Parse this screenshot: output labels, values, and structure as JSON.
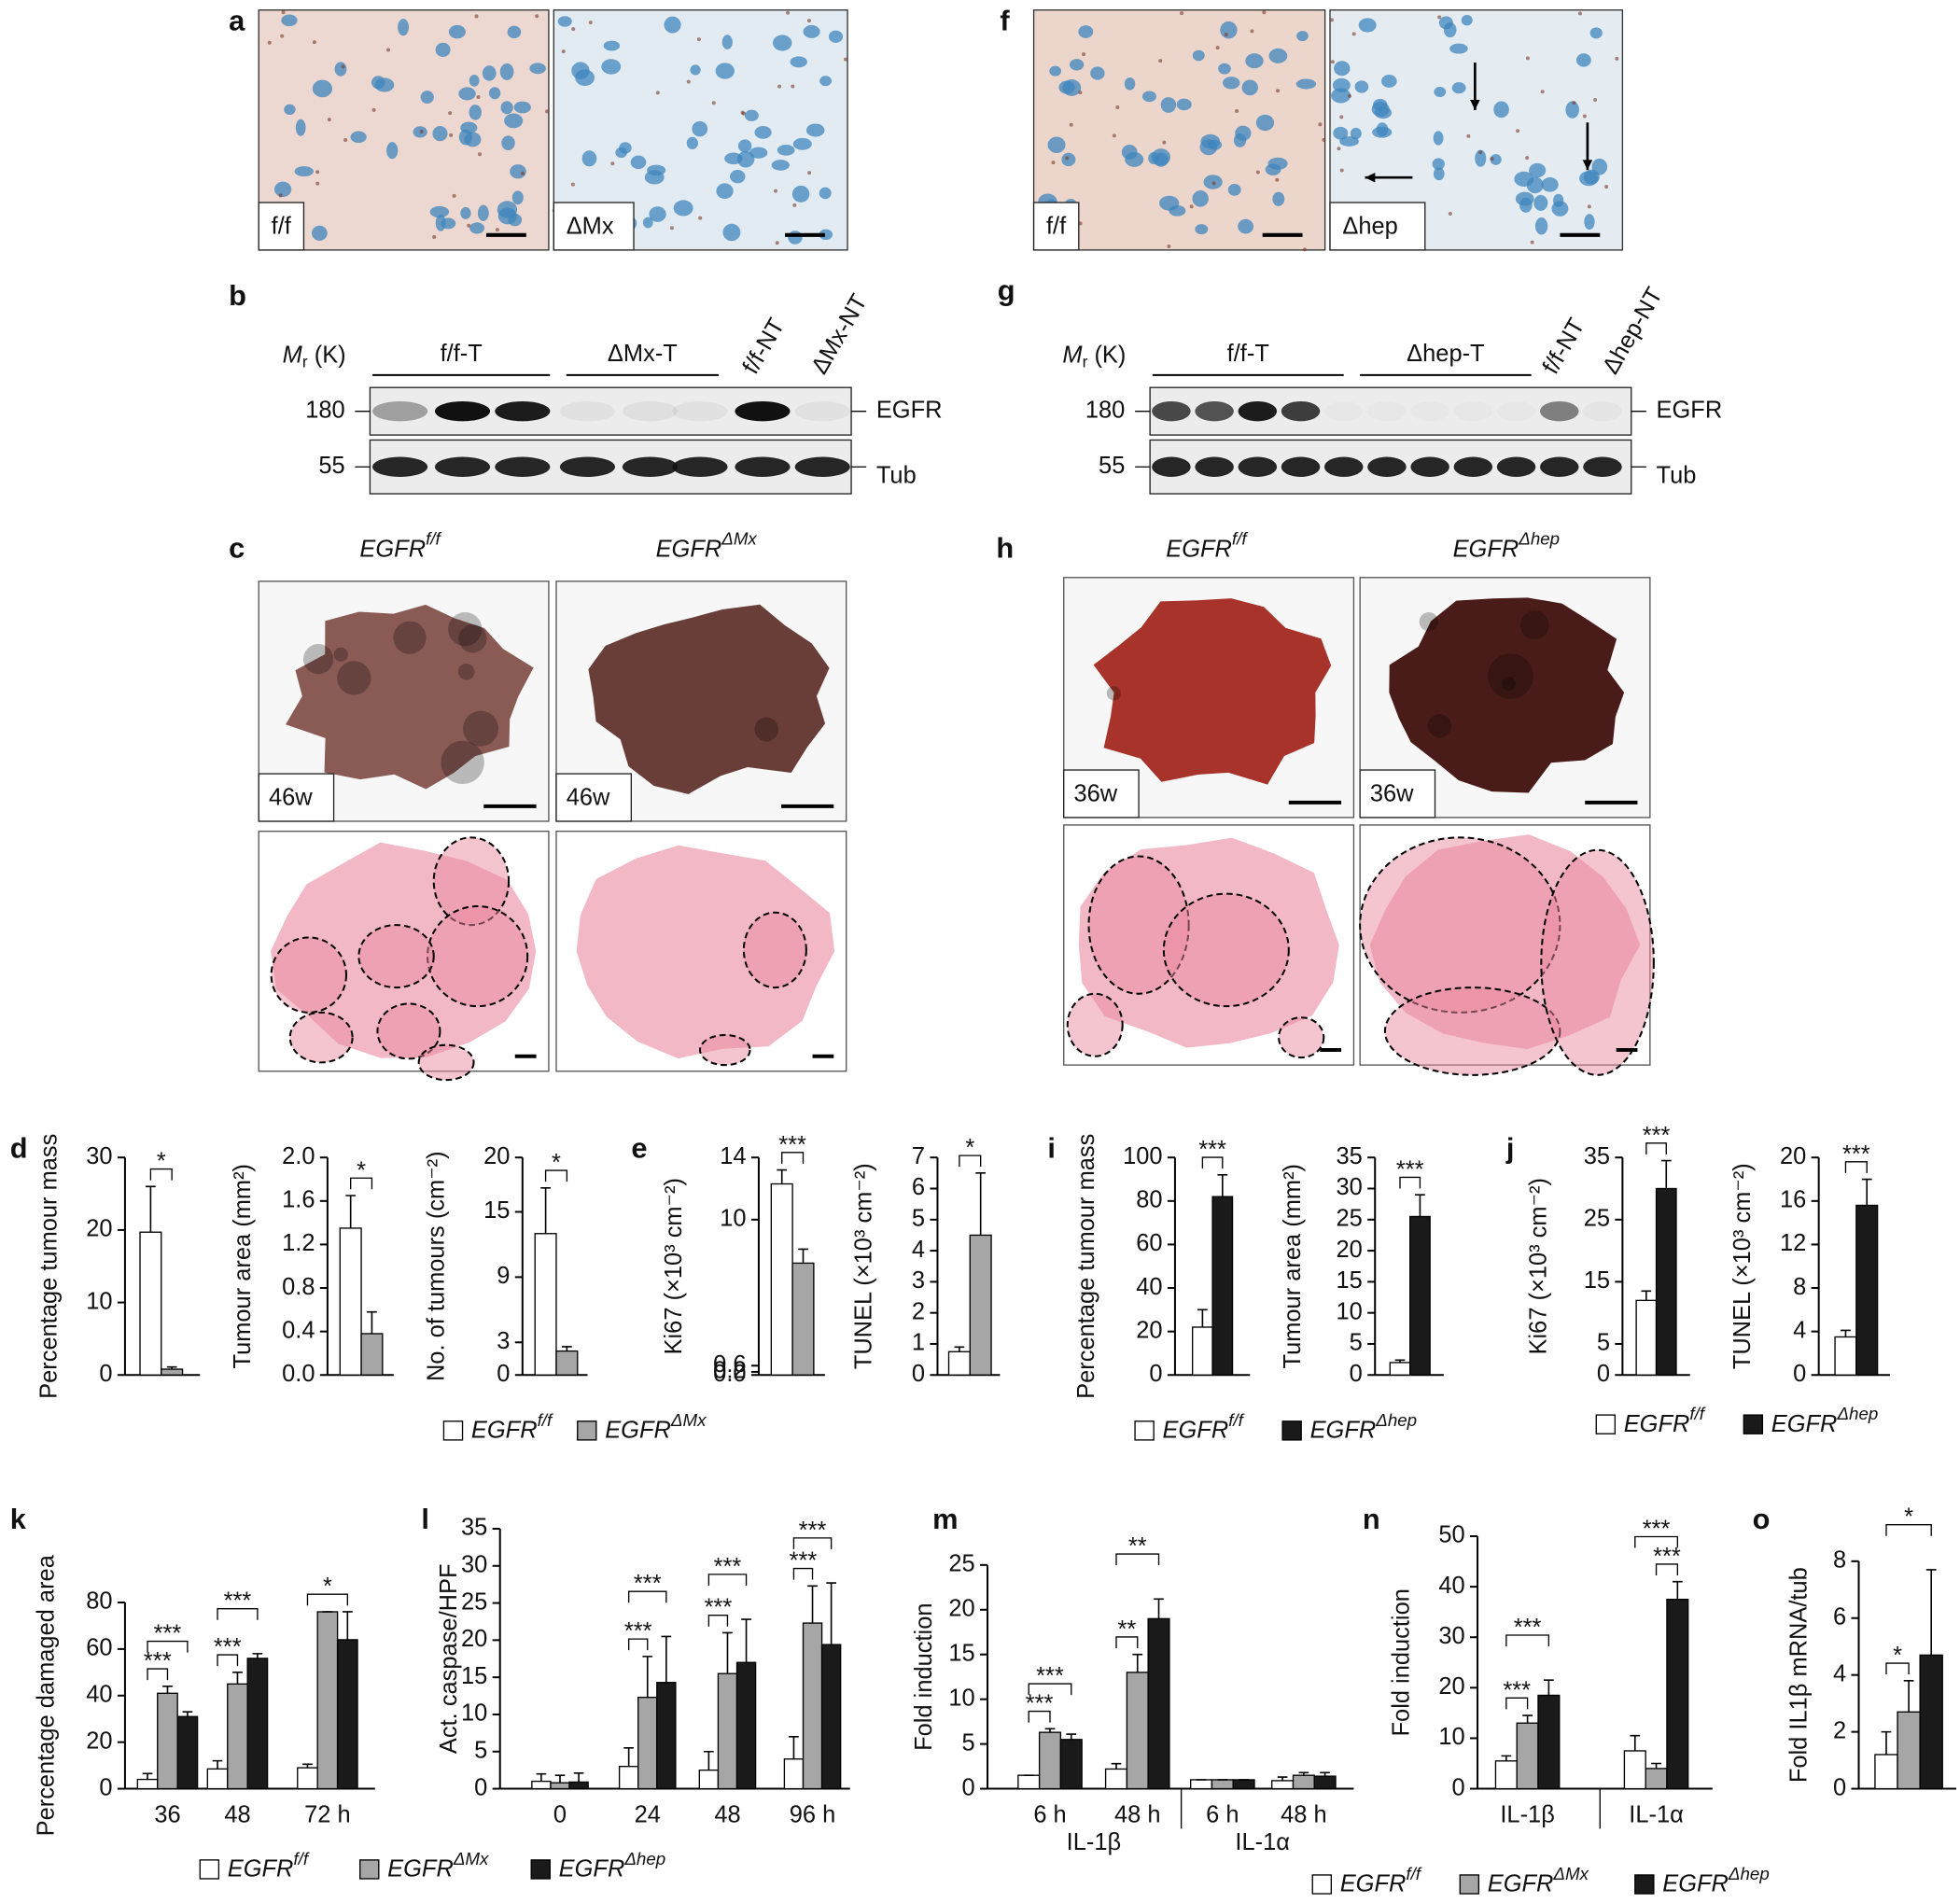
{
  "panels": {
    "letters": [
      "a",
      "b",
      "c",
      "d",
      "e",
      "f",
      "g",
      "h",
      "i",
      "j",
      "k",
      "l",
      "m",
      "n",
      "o"
    ],
    "a": {
      "labels": [
        "f/f",
        "ΔMx"
      ]
    },
    "f": {
      "labels": [
        "f/f",
        "Δhep"
      ]
    },
    "b": {
      "mr": "Mr (K)",
      "lanes": [
        "f/f-T",
        "ΔMx-T",
        "f/f-NT",
        "ΔMx-NT"
      ],
      "markers": [
        180,
        55
      ],
      "proteins": [
        "EGFR",
        "Tub"
      ]
    },
    "g": {
      "mr": "Mr (K)",
      "lanes": [
        "f/f-T",
        "Δhep-T",
        "f/f-NT",
        "Δhep-NT"
      ],
      "markers": [
        180,
        55
      ],
      "proteins": [
        "EGFR",
        "Tub"
      ]
    },
    "c": {
      "headings": [
        "EGFRf/f",
        "EGFRΔMx"
      ],
      "ages": [
        "46w",
        "46w"
      ]
    },
    "h": {
      "headings": [
        "EGFRf/f",
        "EGFRΔhep"
      ],
      "ages": [
        "36w",
        "36w"
      ]
    }
  },
  "chart_data": [
    {
      "type": "bar",
      "y_label": "Percentage tumour mass",
      "categories": [
        null
      ],
      "series": [
        {
          "color": "#ffffff",
          "values": [
            19.7
          ],
          "errors": [
            6.3
          ]
        },
        {
          "color": "#a6a6a6",
          "values": [
            0.8
          ],
          "errors": [
            0.3
          ]
        }
      ],
      "ylim": [
        0,
        30
      ],
      "yticks": [
        0,
        10,
        20,
        30
      ],
      "annotations": [
        "*"
      ]
    },
    {
      "type": "bar",
      "y_label": "Tumour area (mm²)",
      "categories": [
        null
      ],
      "series": [
        {
          "color": "#ffffff",
          "values": [
            1.35
          ],
          "errors": [
            0.3
          ]
        },
        {
          "color": "#a6a6a6",
          "values": [
            0.38
          ],
          "errors": [
            0.2
          ]
        }
      ],
      "ylim": [
        0,
        2
      ],
      "yticks": [
        {
          "value": 0,
          "label": "0.0"
        },
        0.4,
        0.8,
        1.2,
        1.6,
        {
          "value": 2,
          "label": "2.0"
        }
      ],
      "annotations": [
        "*"
      ]
    },
    {
      "type": "bar",
      "y_label": "No. of tumours (cm⁻²)",
      "categories": [
        null
      ],
      "series": [
        {
          "color": "#ffffff",
          "values": [
            13
          ],
          "errors": [
            4.2
          ]
        },
        {
          "color": "#a6a6a6",
          "values": [
            2.2
          ],
          "errors": [
            0.4
          ]
        }
      ],
      "ylim": [
        0,
        20
      ],
      "yticks": [
        0,
        3,
        9,
        15,
        20
      ],
      "annotations": [
        "*"
      ]
    },
    {
      "type": "bar",
      "y_label": "Ki67 (×10³ cm⁻²)",
      "categories": [
        null
      ],
      "series": [
        {
          "color": "#ffffff",
          "values": [
            12.3
          ],
          "errors": [
            0.9
          ]
        },
        {
          "color": "#a6a6a6",
          "values": [
            7.2
          ],
          "errors": [
            0.9
          ]
        }
      ],
      "ylim": [
        0,
        14
      ],
      "yticks": [
        {
          "value": 0,
          "label": "0.0"
        },
        0.2,
        0.6,
        10,
        14
      ],
      "annotations": [
        "***"
      ]
    },
    {
      "type": "bar",
      "y_label": "TUNEL (×10³ cm⁻²)",
      "categories": [
        null
      ],
      "series": [
        {
          "name": "EGFRf/f",
          "color": "#ffffff",
          "values": [
            0.75
          ],
          "errors": [
            0.15
          ]
        },
        {
          "name": "EGFRΔMx",
          "color": "#a6a6a6",
          "values": [
            4.5
          ],
          "errors": [
            2
          ]
        }
      ],
      "ylim": [
        0,
        7
      ],
      "yticks": [
        0,
        1,
        2,
        3,
        4,
        5,
        6,
        7
      ],
      "annotations": [
        "*"
      ]
    },
    {
      "type": "bar",
      "y_label": "Percentage tumour mass",
      "categories": [
        null
      ],
      "series": [
        {
          "name": "EGFRf/f",
          "color": "#ffffff",
          "values": [
            22
          ],
          "errors": [
            8
          ]
        },
        {
          "name": "EGFRΔhep",
          "color": "#1a1a1a",
          "values": [
            82
          ],
          "errors": [
            10
          ]
        }
      ],
      "ylim": [
        0,
        100
      ],
      "yticks": [
        0,
        20,
        40,
        60,
        80,
        100
      ],
      "annotations": [
        "***"
      ]
    },
    {
      "type": "bar",
      "y_label": "Tumour area (mm²)",
      "categories": [
        null
      ],
      "series": [
        {
          "color": "#ffffff",
          "values": [
            2
          ],
          "errors": [
            0.4
          ]
        },
        {
          "color": "#1a1a1a",
          "values": [
            25.5
          ],
          "errors": [
            3.5
          ]
        }
      ],
      "ylim": [
        0,
        35
      ],
      "yticks": [
        0,
        5,
        10,
        15,
        20,
        25,
        30,
        35
      ],
      "annotations": [
        "***"
      ]
    },
    {
      "type": "bar",
      "y_label": "Ki67 (×10³ cm⁻²)",
      "categories": [
        null
      ],
      "series": [
        {
          "name": "EGFRf/f",
          "color": "#ffffff",
          "values": [
            12
          ],
          "errors": [
            1.5
          ]
        },
        {
          "name": "EGFRΔhep",
          "color": "#1a1a1a",
          "values": [
            30
          ],
          "errors": [
            4.5
          ]
        }
      ],
      "ylim": [
        0,
        35
      ],
      "yticks": [
        0,
        5,
        15,
        25,
        35
      ],
      "annotations": [
        "***"
      ]
    },
    {
      "type": "bar",
      "y_label": "TUNEL (×10³ cm⁻²)",
      "categories": [
        null
      ],
      "series": [
        {
          "color": "#ffffff",
          "values": [
            3.5
          ],
          "errors": [
            0.6
          ]
        },
        {
          "color": "#1a1a1a",
          "values": [
            15.6
          ],
          "errors": [
            2.4
          ]
        }
      ],
      "ylim": [
        0,
        20
      ],
      "yticks": [
        0,
        4,
        8,
        12,
        16,
        20
      ],
      "annotations": [
        "***"
      ]
    },
    {
      "type": "bar",
      "y_label": "Percentage damaged area",
      "categories": [
        "36",
        "48",
        "72 h"
      ],
      "series": [
        {
          "name": "EGFRf/f",
          "color": "#ffffff",
          "values": [
            4,
            8.5,
            9
          ],
          "errors": [
            2.5,
            3.5,
            1.5
          ]
        },
        {
          "name": "EGFRΔMx",
          "color": "#a6a6a6",
          "values": [
            41,
            45,
            76
          ],
          "errors": [
            3,
            5,
            0
          ]
        },
        {
          "name": "EGFRΔhep",
          "color": "#1a1a1a",
          "values": [
            31,
            56,
            64
          ],
          "errors": [
            2,
            2,
            12
          ]
        }
      ],
      "ylim": [
        0,
        80
      ],
      "yticks": [
        0,
        20,
        40,
        60,
        80
      ],
      "annotations": [
        "***",
        "***",
        "***",
        "***",
        "*"
      ]
    },
    {
      "type": "bar",
      "y_label": "Act. caspase/HPF",
      "categories": [
        "0",
        "24",
        "48",
        "96 h"
      ],
      "series": [
        {
          "color": "#ffffff",
          "values": [
            1,
            3,
            2.5,
            4
          ],
          "errors": [
            1,
            2.5,
            2.5,
            3
          ]
        },
        {
          "color": "#a6a6a6",
          "values": [
            0.8,
            12.3,
            15.5,
            22.3
          ],
          "errors": [
            1,
            5.5,
            5.5,
            5
          ]
        },
        {
          "color": "#1a1a1a",
          "values": [
            0.9,
            14.3,
            17,
            19.4
          ],
          "errors": [
            1.2,
            6.2,
            5.8,
            8.3
          ]
        }
      ],
      "ylim": [
        0,
        35
      ],
      "yticks": [
        0,
        5,
        10,
        15,
        20,
        25,
        30,
        35
      ],
      "annotations": [
        "***",
        "***",
        "***",
        "***",
        "***",
        "***"
      ]
    },
    {
      "type": "bar",
      "y_label": "Fold induction",
      "categories": [
        "6 h",
        "48 h",
        "6 h",
        "48 h"
      ],
      "group_labels": [
        "IL-1β",
        "IL-1α"
      ],
      "series": [
        {
          "color": "#ffffff",
          "values": [
            1.5,
            2.2,
            1,
            0.9
          ],
          "errors": [
            0,
            0.6,
            0,
            0.4
          ]
        },
        {
          "color": "#a6a6a6",
          "values": [
            6.3,
            13,
            1,
            1.5
          ],
          "errors": [
            0.4,
            2,
            0,
            0.3
          ]
        },
        {
          "color": "#1a1a1a",
          "values": [
            5.5,
            19,
            1,
            1.4
          ],
          "errors": [
            0.6,
            2.2,
            0,
            0.4
          ]
        }
      ],
      "ylim": [
        0,
        25
      ],
      "yticks": [
        0,
        5,
        10,
        15,
        20,
        25
      ],
      "annotations": [
        "***",
        "***",
        "**",
        "**"
      ]
    },
    {
      "type": "bar",
      "y_label": "Fold induction",
      "categories": [
        "IL-1β",
        "IL-1α"
      ],
      "series": [
        {
          "name": "EGFRf/f",
          "color": "#ffffff",
          "values": [
            5.5,
            7.5
          ],
          "errors": [
            1,
            3
          ]
        },
        {
          "name": "EGFRΔMx",
          "color": "#a6a6a6",
          "values": [
            13,
            4
          ],
          "errors": [
            1.5,
            1
          ]
        },
        {
          "name": "EGFRΔhep",
          "color": "#1a1a1a",
          "values": [
            18.5,
            37.5
          ],
          "errors": [
            3,
            3.5
          ]
        }
      ],
      "ylim": [
        0,
        50
      ],
      "yticks": [
        0,
        10,
        20,
        30,
        40,
        50
      ],
      "annotations": [
        "***",
        "***",
        "***",
        "***"
      ]
    },
    {
      "type": "bar",
      "y_label": "Fold IL1β mRNA/tub",
      "categories": [
        null
      ],
      "series": [
        {
          "color": "#ffffff",
          "values": [
            1.2
          ],
          "errors": [
            0.8
          ]
        },
        {
          "color": "#a6a6a6",
          "values": [
            2.7
          ],
          "errors": [
            1.1
          ]
        },
        {
          "color": "#1a1a1a",
          "values": [
            4.7
          ],
          "errors": [
            3
          ]
        }
      ],
      "ylim": [
        0,
        8
      ],
      "yticks": [
        0,
        2,
        4,
        6,
        8
      ],
      "annotations": [
        "*",
        "*"
      ]
    }
  ]
}
